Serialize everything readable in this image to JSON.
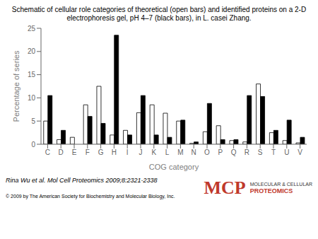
{
  "chart_data": {
    "type": "bar",
    "title": "Schematic of cellular role categories of theoretical (open bars) and identified proteins on a 2-D",
    "subtitle": "electrophoresis gel, pH 4–7 (black bars), in L. casei Zhang.",
    "categories": [
      "C",
      "D",
      "E",
      "F",
      "G",
      "H",
      "I",
      "J",
      "K",
      "L",
      "M",
      "N",
      "O",
      "P",
      "Q",
      "R",
      "S",
      "T",
      "U",
      "V"
    ],
    "series": [
      {
        "color": "#ffffff",
        "values": [
          5.0,
          1.0,
          1.5,
          8.5,
          12.5,
          2.0,
          3.0,
          6.8,
          8.5,
          6.7,
          5.0,
          0.2,
          2.7,
          4.0,
          0.8,
          0.5,
          13.0,
          2.5,
          0.8,
          0.3
        ]
      },
      {
        "color": "#000000",
        "values": [
          10.5,
          3.0,
          0.0,
          6.0,
          4.5,
          23.5,
          2.0,
          10.5,
          2.0,
          1.5,
          5.2,
          0.5,
          8.8,
          1.0,
          1.0,
          10.5,
          10.3,
          3.0,
          5.2,
          1.5
        ]
      }
    ],
    "xlabel": "COG category",
    "ylabel": "Percentage of series",
    "ylim": [
      0,
      25
    ],
    "yticks": [
      0,
      5,
      10,
      15,
      20,
      25
    ],
    "grid": false,
    "annotations": [
      "Rina Wu et al. Mol Cell Proteomics 2009;8:2321-2338",
      "© 2009 by The American Society for Biochemistry and Molecular Biology, Inc.",
      "MCP",
      "MOLECULAR & CELLULAR",
      "PROTEOMICS"
    ]
  }
}
